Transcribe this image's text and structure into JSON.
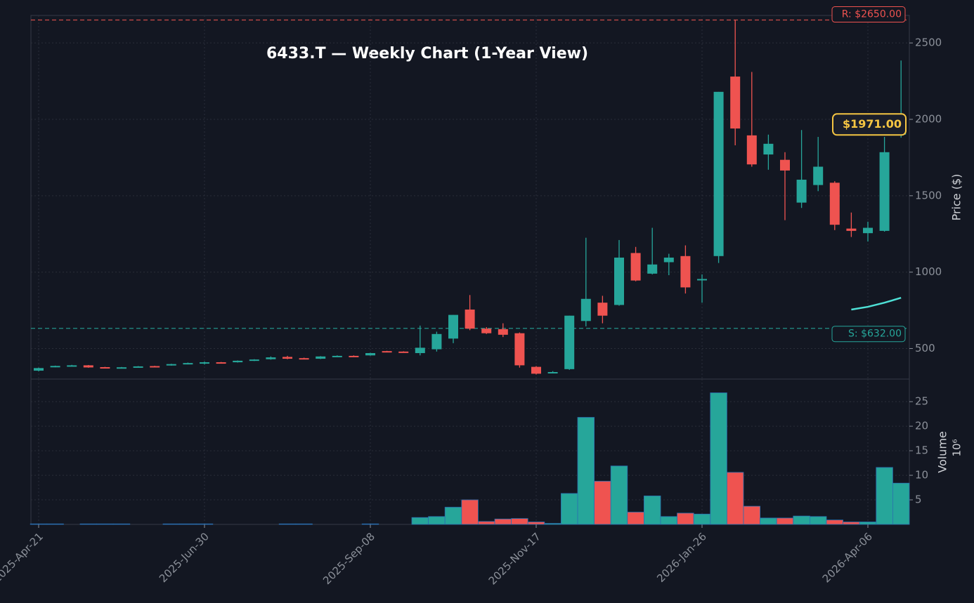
{
  "chart_data": [
    {
      "type": "candlestick",
      "title": "6433.T — Weekly Chart (1-Year View)",
      "ylabel": "Price ($)",
      "categories": [
        "2025-Apr-21",
        null,
        null,
        null,
        null,
        null,
        null,
        null,
        null,
        null,
        "2025-Jun-30",
        null,
        null,
        null,
        null,
        null,
        null,
        null,
        null,
        null,
        "2025-Sep-08",
        null,
        null,
        null,
        null,
        null,
        null,
        null,
        null,
        null,
        "2025-Nov-17",
        null,
        null,
        null,
        null,
        null,
        null,
        null,
        null,
        null,
        "2026-Jan-26",
        null,
        null,
        null,
        null,
        null,
        null,
        null,
        null,
        null,
        "2026-Apr-06",
        null,
        null
      ],
      "open": [
        355,
        380,
        386,
        390,
        378,
        375,
        380,
        385,
        390,
        398,
        405,
        410,
        410,
        420,
        430,
        445,
        437,
        433,
        448,
        452,
        455,
        483,
        480,
        470,
        495,
        565,
        755,
        630,
        627,
        600,
        380,
        342,
        365,
        680,
        800,
        785,
        1125,
        990,
        1065,
        1105,
        950,
        1105,
        2280,
        1895,
        1770,
        1735,
        1455,
        1570,
        1585,
        1285,
        1255,
        1270,
        1900
      ],
      "high": [
        375,
        388,
        393,
        392,
        380,
        379,
        385,
        387,
        400,
        408,
        415,
        412,
        422,
        430,
        448,
        452,
        440,
        450,
        455,
        455,
        472,
        485,
        482,
        650,
        610,
        720,
        850,
        640,
        665,
        605,
        385,
        352,
        715,
        1225,
        845,
        1210,
        1165,
        1290,
        1120,
        1175,
        985,
        2180,
        2650,
        2310,
        1900,
        1785,
        1930,
        1885,
        1595,
        1390,
        1330,
        1885,
        2385
      ],
      "low": [
        350,
        377,
        384,
        374,
        371,
        373,
        378,
        381,
        388,
        396,
        395,
        406,
        408,
        418,
        427,
        430,
        430,
        431,
        446,
        448,
        453,
        478,
        474,
        455,
        480,
        535,
        620,
        595,
        575,
        375,
        330,
        338,
        360,
        645,
        665,
        780,
        940,
        985,
        980,
        860,
        800,
        1060,
        1830,
        1690,
        1670,
        1340,
        1420,
        1530,
        1275,
        1230,
        1200,
        1265,
        1880
      ],
      "close": [
        372,
        386,
        390,
        376,
        373,
        377,
        383,
        383,
        398,
        405,
        410,
        408,
        420,
        428,
        442,
        433,
        433,
        448,
        452,
        450,
        470,
        480,
        477,
        505,
        595,
        720,
        630,
        600,
        590,
        390,
        335,
        346,
        715,
        825,
        715,
        1095,
        945,
        1050,
        1095,
        900,
        955,
        2180,
        1940,
        1705,
        1840,
        1665,
        1605,
        1690,
        1310,
        1270,
        1290,
        1785,
        1971
      ],
      "up_color": "#26a69a",
      "down_color": "#ef5350",
      "overlay": {
        "color": "#4ee0d6",
        "values": [
          null,
          null,
          null,
          null,
          null,
          null,
          null,
          null,
          null,
          null,
          null,
          null,
          null,
          null,
          null,
          null,
          null,
          null,
          null,
          null,
          null,
          null,
          null,
          null,
          null,
          null,
          null,
          null,
          null,
          null,
          null,
          null,
          null,
          null,
          null,
          null,
          null,
          null,
          null,
          null,
          null,
          null,
          null,
          null,
          null,
          null,
          null,
          null,
          null,
          755,
          773,
          800,
          832
        ]
      },
      "resistance": {
        "value": 2650,
        "label": "R: $2650.00"
      },
      "support": {
        "value": 632,
        "label": "S: $632.00"
      },
      "last_price": {
        "value": 1971,
        "label": "$1971.00"
      },
      "ylim": [
        300,
        2680
      ],
      "yticks": [
        500,
        1000,
        1500,
        2000,
        2500
      ],
      "grid": true
    },
    {
      "type": "bar",
      "ylabel": "Volume",
      "offset_label": "10⁶",
      "values": [
        0.1,
        0.1,
        0,
        0.1,
        0.1,
        0.1,
        0,
        0,
        0.1,
        0.1,
        0.1,
        0,
        0,
        0,
        0,
        0.1,
        0.1,
        0,
        0,
        0,
        0.1,
        0,
        0,
        1.4,
        1.6,
        3.5,
        5,
        0.6,
        1.1,
        1.2,
        0.5,
        0.2,
        6.3,
        21.8,
        8.8,
        11.9,
        2.5,
        5.8,
        1.6,
        2.3,
        2.1,
        26.8,
        10.6,
        3.7,
        1.3,
        1.3,
        1.7,
        1.6,
        0.9,
        0.5,
        0.5,
        11.6,
        8.4
      ],
      "ylim": [
        0,
        29.6
      ],
      "yticks": [
        5,
        10,
        15,
        20,
        25
      ],
      "grid": true
    }
  ]
}
